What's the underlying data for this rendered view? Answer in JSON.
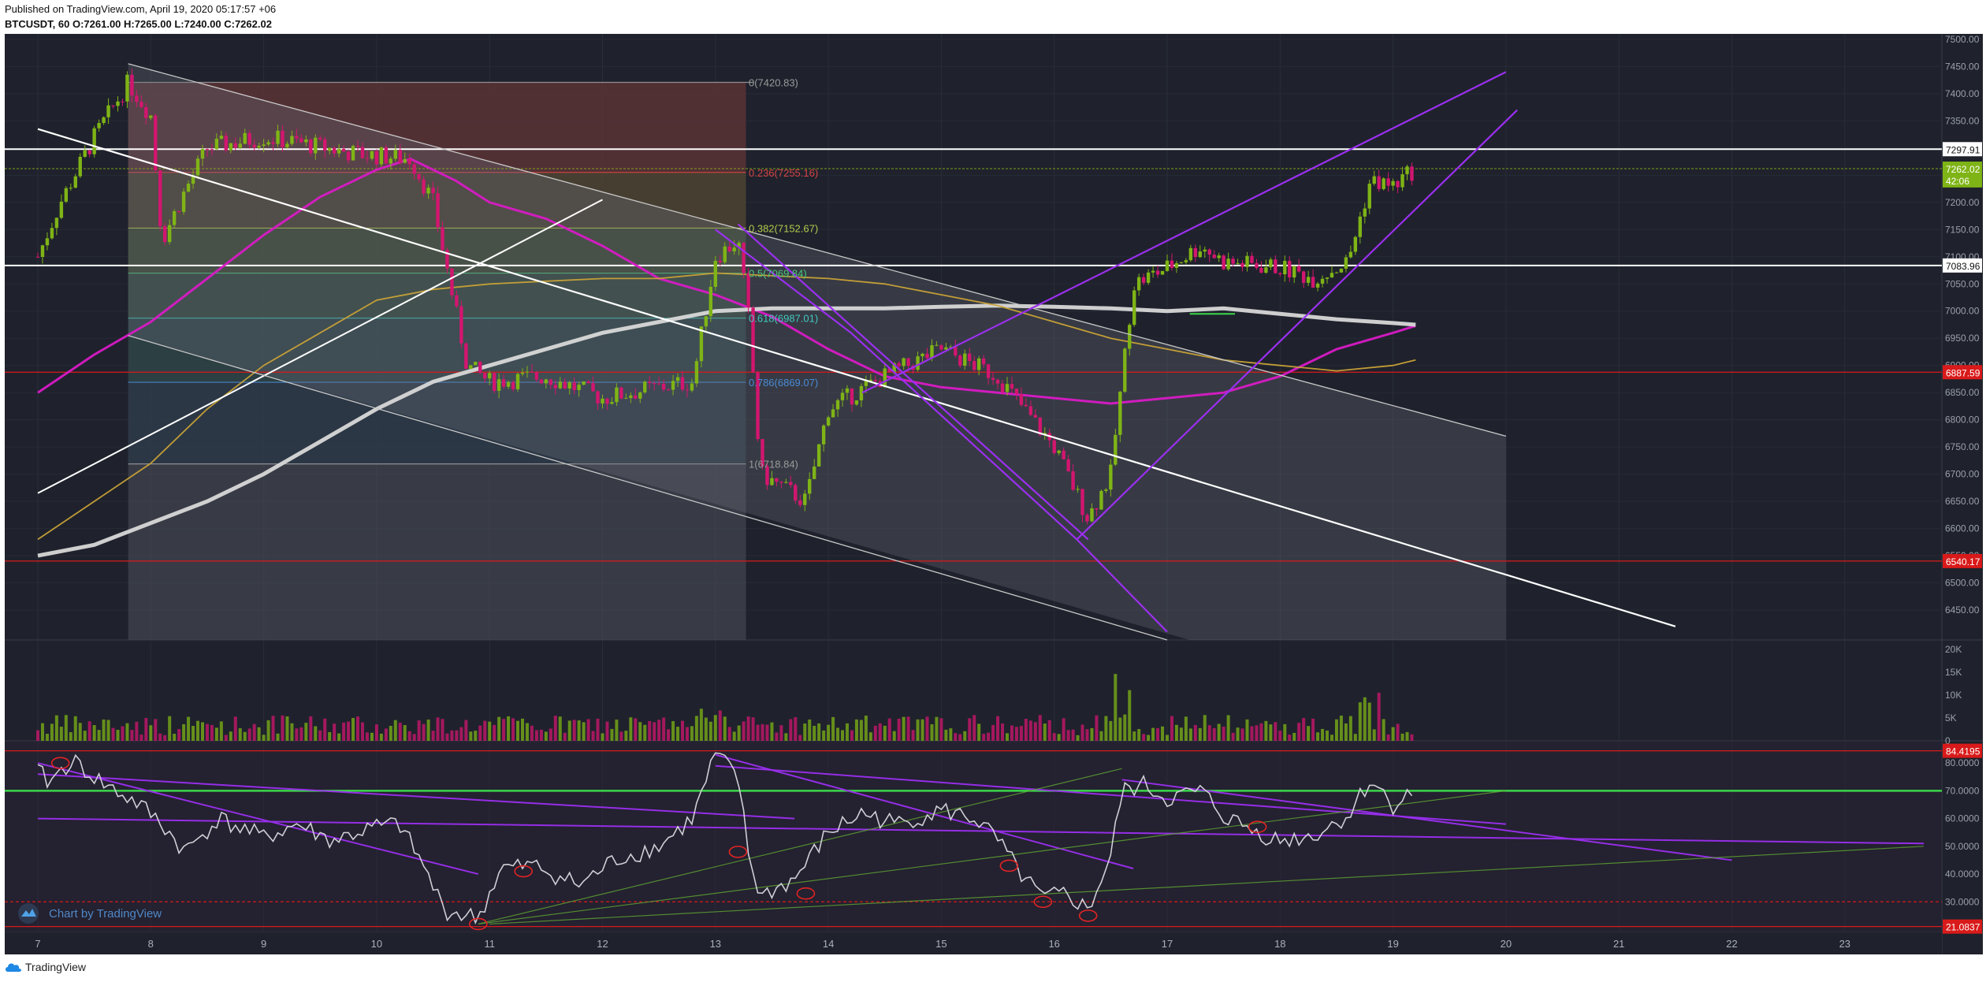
{
  "header": {
    "published": "Published on TradingView.com, April 19, 2020 05:17:57 +06",
    "symbol": "BTCUSDT, 60",
    "ohlc": "O:7261.00 H:7265.00 L:7240.00 C:7262.02"
  },
  "footer": {
    "brand": "TradingView"
  },
  "colors": {
    "background": "#1f222c",
    "up": "#7fb416",
    "down": "#d2166f",
    "channel": "#9b2ff0",
    "rsi_line": "#cfcfd6",
    "ma_pink": "#d81ac6",
    "ma_white": "#d8d8d8",
    "ma_gold": "#c9a237",
    "support": "#d91a1a",
    "level_white": "#ffffff"
  },
  "chart_data": [
    {
      "type": "candlestick",
      "x_dates": [
        "7",
        "8",
        "9",
        "10",
        "11",
        "12",
        "13",
        "14",
        "15",
        "16",
        "17",
        "18",
        "19",
        "20",
        "21",
        "22",
        "23"
      ],
      "y_ticks": [
        6450,
        6500,
        6550,
        6600,
        6650,
        6700,
        6750,
        6800,
        6850,
        6900,
        6950,
        7000,
        7050,
        7100,
        7150,
        7200,
        7250,
        7300,
        7350,
        7400,
        7450,
        7500
      ],
      "ylim": [
        6395,
        7510
      ],
      "price_path": [
        [
          7.0,
          7100
        ],
        [
          7.2,
          7200
        ],
        [
          7.5,
          7320
        ],
        [
          7.8,
          7420
        ],
        [
          8.0,
          7360
        ],
        [
          8.1,
          7130
        ],
        [
          8.3,
          7220
        ],
        [
          8.5,
          7300
        ],
        [
          9.0,
          7320
        ],
        [
          9.3,
          7310
        ],
        [
          9.8,
          7290
        ],
        [
          10.3,
          7280
        ],
        [
          10.5,
          7200
        ],
        [
          10.8,
          6900
        ],
        [
          11.0,
          6870
        ],
        [
          11.5,
          6880
        ],
        [
          12.0,
          6840
        ],
        [
          12.5,
          6860
        ],
        [
          12.8,
          6870
        ],
        [
          13.0,
          7100
        ],
        [
          13.2,
          7130
        ],
        [
          13.3,
          6980
        ],
        [
          13.4,
          6700
        ],
        [
          13.8,
          6650
        ],
        [
          14.0,
          6820
        ],
        [
          14.5,
          6880
        ],
        [
          15.0,
          6930
        ],
        [
          15.5,
          6880
        ],
        [
          16.0,
          6750
        ],
        [
          16.3,
          6620
        ],
        [
          16.5,
          6700
        ],
        [
          16.7,
          7050
        ],
        [
          17.0,
          7080
        ],
        [
          17.3,
          7120
        ],
        [
          17.5,
          7090
        ],
        [
          18.0,
          7080
        ],
        [
          18.3,
          7060
        ],
        [
          18.6,
          7090
        ],
        [
          18.8,
          7240
        ],
        [
          19.0,
          7230
        ],
        [
          19.2,
          7262
        ]
      ],
      "support_levels": [
        7297.91,
        7262.02,
        7083.96,
        6887.59,
        6540.17
      ],
      "price_labels": [
        "7297.91",
        "7262.02",
        "42:06",
        "7083.96",
        "6887.59",
        "6540.17"
      ],
      "fibonacci": [
        {
          "ratio": 0,
          "label": "0(7420.83)"
        },
        {
          "ratio": 0.236,
          "label": "0.236(7255.16)"
        },
        {
          "ratio": 0.382,
          "label": "0.382(7152.67)"
        },
        {
          "ratio": 0.5,
          "label": "0.5(7069.84)"
        },
        {
          "ratio": 0.618,
          "label": "0.618(6987.01)"
        },
        {
          "ratio": 0.786,
          "label": "0.786(6869.07)"
        },
        {
          "ratio": 1,
          "label": "1(6718.84)"
        }
      ],
      "moving_averages": [
        {
          "path": [
            [
              7.0,
              6850
            ],
            [
              7.5,
              6920
            ],
            [
              8.0,
              6980
            ],
            [
              8.5,
              7060
            ],
            [
              9.0,
              7140
            ],
            [
              9.5,
              7210
            ],
            [
              10.0,
              7260
            ],
            [
              10.3,
              7280
            ],
            [
              10.7,
              7240
            ],
            [
              11.0,
              7200
            ],
            [
              11.5,
              7170
            ],
            [
              12.0,
              7120
            ],
            [
              12.5,
              7060
            ],
            [
              13.0,
              7030
            ],
            [
              13.5,
              6990
            ],
            [
              14.0,
              6930
            ],
            [
              14.5,
              6880
            ],
            [
              15.0,
              6860
            ],
            [
              15.5,
              6850
            ],
            [
              16.0,
              6840
            ],
            [
              16.5,
              6830
            ],
            [
              17.0,
              6840
            ],
            [
              17.5,
              6850
            ],
            [
              18.0,
              6880
            ],
            [
              18.5,
              6930
            ],
            [
              19.0,
              6960
            ],
            [
              19.2,
              6973
            ]
          ]
        },
        {
          "path": [
            [
              7.0,
              6550
            ],
            [
              7.5,
              6570
            ],
            [
              8.0,
              6610
            ],
            [
              8.5,
              6650
            ],
            [
              9.0,
              6700
            ],
            [
              9.5,
              6760
            ],
            [
              10.0,
              6820
            ],
            [
              10.5,
              6870
            ],
            [
              11.0,
              6900
            ],
            [
              11.5,
              6930
            ],
            [
              12.0,
              6960
            ],
            [
              12.5,
              6980
            ],
            [
              13.0,
              7000
            ],
            [
              13.5,
              7005
            ],
            [
              14.0,
              7005
            ],
            [
              14.5,
              7005
            ],
            [
              15.0,
              7008
            ],
            [
              15.5,
              7010
            ],
            [
              16.0,
              7008
            ],
            [
              16.5,
              7005
            ],
            [
              17.0,
              7000
            ],
            [
              17.5,
              7005
            ],
            [
              18.0,
              6995
            ],
            [
              18.5,
              6985
            ],
            [
              19.0,
              6978
            ],
            [
              19.2,
              6975
            ]
          ]
        },
        {
          "path": [
            [
              7.0,
              6580
            ],
            [
              7.5,
              6650
            ],
            [
              8.0,
              6720
            ],
            [
              8.5,
              6820
            ],
            [
              9.0,
              6900
            ],
            [
              9.5,
              6960
            ],
            [
              10.0,
              7020
            ],
            [
              10.5,
              7040
            ],
            [
              11.0,
              7050
            ],
            [
              11.5,
              7055
            ],
            [
              12.0,
              7060
            ],
            [
              12.5,
              7060
            ],
            [
              13.0,
              7070
            ],
            [
              13.5,
              7065
            ],
            [
              14.0,
              7060
            ],
            [
              14.5,
              7050
            ],
            [
              15.0,
              7030
            ],
            [
              15.5,
              7010
            ],
            [
              16.0,
              6980
            ],
            [
              16.5,
              6950
            ],
            [
              17.0,
              6930
            ],
            [
              17.5,
              6910
            ],
            [
              18.0,
              6900
            ],
            [
              18.5,
              6890
            ],
            [
              19.0,
              6900
            ],
            [
              19.2,
              6910
            ]
          ]
        }
      ],
      "trendlines": [
        {
          "points": [
            [
              7.0,
              7335
            ],
            [
              20.0,
              6515
            ],
            [
              21.5,
              6420
            ]
          ]
        },
        {
          "points": [
            [
              7.0,
              6665
            ],
            [
              12.0,
              7205
            ]
          ]
        },
        {
          "points": [
            [
              7.8,
              7455
            ],
            [
              20.0,
              6770
            ]
          ]
        },
        {
          "points": [
            [
              7.8,
              6955
            ],
            [
              17.0,
              6395
            ]
          ]
        },
        {
          "points": [
            [
              13.0,
              7150
            ],
            [
              14.2,
              6960
            ],
            [
              16.2,
              6580
            ],
            [
              17.0,
              6410
            ]
          ]
        },
        {
          "points": [
            [
              13.2,
              7160
            ],
            [
              16.3,
              6580
            ]
          ]
        },
        {
          "points": [
            [
              16.2,
              6580
            ],
            [
              20.1,
              7370
            ]
          ]
        },
        {
          "points": [
            [
              14.3,
              6850
            ],
            [
              20.0,
              7440
            ]
          ]
        }
      ]
    },
    {
      "type": "bar",
      "series_name": "volume",
      "y_ticks": [
        "20K",
        "15K",
        "10K",
        "5K",
        "0"
      ],
      "ylim": [
        0,
        21000
      ]
    },
    {
      "type": "line",
      "series_name": "RSI",
      "y_ticks": [
        "80.0000",
        "70.0000",
        "60.0000",
        "50.0000",
        "40.0000",
        "30.0000"
      ],
      "levels": [
        84.4195,
        70,
        30,
        21.0837
      ],
      "level_labels": [
        "84.4195",
        "21.0837"
      ],
      "ylim": [
        19,
        88
      ],
      "path": [
        [
          7.0,
          77
        ],
        [
          7.1,
          73
        ],
        [
          7.3,
          81
        ],
        [
          7.6,
          72
        ],
        [
          7.9,
          65
        ],
        [
          8.1,
          58
        ],
        [
          8.3,
          48
        ],
        [
          8.6,
          60
        ],
        [
          9.0,
          53
        ],
        [
          9.3,
          58
        ],
        [
          9.6,
          52
        ],
        [
          10.0,
          57
        ],
        [
          10.2,
          58
        ],
        [
          10.4,
          44
        ],
        [
          10.6,
          27
        ],
        [
          10.9,
          24
        ],
        [
          11.1,
          42
        ],
        [
          11.4,
          43
        ],
        [
          11.8,
          36
        ],
        [
          12.1,
          45
        ],
        [
          12.5,
          50
        ],
        [
          12.8,
          60
        ],
        [
          13.0,
          83
        ],
        [
          13.2,
          75
        ],
        [
          13.3,
          45
        ],
        [
          13.4,
          32
        ],
        [
          13.7,
          38
        ],
        [
          14.0,
          55
        ],
        [
          14.3,
          62
        ],
        [
          14.6,
          58
        ],
        [
          15.0,
          63
        ],
        [
          15.3,
          60
        ],
        [
          15.5,
          52
        ],
        [
          15.7,
          40
        ],
        [
          15.9,
          31
        ],
        [
          16.1,
          33
        ],
        [
          16.3,
          27
        ],
        [
          16.5,
          46
        ],
        [
          16.6,
          70
        ],
        [
          16.8,
          72
        ],
        [
          17.0,
          67
        ],
        [
          17.3,
          70
        ],
        [
          17.5,
          61
        ],
        [
          17.8,
          55
        ],
        [
          18.0,
          52
        ],
        [
          18.3,
          54
        ],
        [
          18.6,
          61
        ],
        [
          18.8,
          74
        ],
        [
          19.0,
          65
        ],
        [
          19.2,
          70
        ]
      ]
    }
  ],
  "watermark": "Chart by TradingView"
}
